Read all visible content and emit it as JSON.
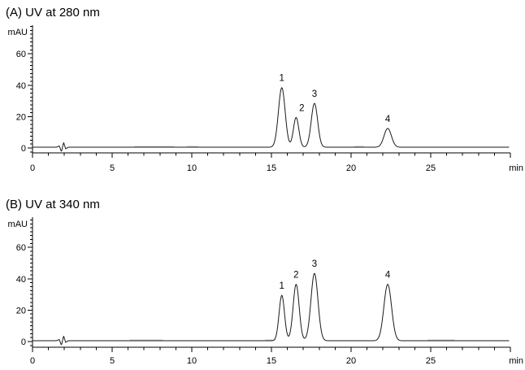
{
  "chart_data": [
    {
      "type": "line",
      "panel": "A",
      "title": "(A) UV at 280 nm",
      "ylabel": "mAU",
      "xlabel": "min",
      "xlim": [
        0,
        30
      ],
      "ylim": [
        -3,
        78
      ],
      "x_major_ticks": [
        0,
        5,
        10,
        15,
        20,
        25,
        30
      ],
      "x_major_tick_labels": [
        "0",
        "5",
        "10",
        "15",
        "20",
        "25",
        ""
      ],
      "x_minor_step": 1,
      "y_major_ticks": [
        0,
        20,
        40,
        60
      ],
      "y_minor_step": 2.5,
      "grid": false,
      "legend": "none",
      "baseline_mAU": 0.5,
      "line_color": "#1a1a1a",
      "ghost_color": "#c8c8c8",
      "ghost_segments_min": [
        [
          6.4,
          8.9
        ],
        [
          9.7,
          10.4
        ],
        [
          20.2,
          20.8
        ]
      ],
      "injection_artifact_points": [
        [
          1.5,
          0
        ],
        [
          1.68,
          0.8
        ],
        [
          1.82,
          -3.0
        ],
        [
          1.95,
          3.2
        ],
        [
          2.08,
          -1.0
        ],
        [
          2.25,
          0
        ]
      ],
      "peaks": [
        {
          "label": "1",
          "retention_min": 15.65,
          "height_mAU": 38,
          "sigma_min": 0.21,
          "label_dx": 0
        },
        {
          "label": "2",
          "retention_min": 16.55,
          "height_mAU": 19,
          "sigma_min": 0.17,
          "label_dx": 7
        },
        {
          "label": "3",
          "retention_min": 17.7,
          "height_mAU": 28,
          "sigma_min": 0.2,
          "label_dx": 0
        },
        {
          "label": "4",
          "retention_min": 22.3,
          "height_mAU": 12,
          "sigma_min": 0.23,
          "label_dx": 0
        }
      ]
    },
    {
      "type": "line",
      "panel": "B",
      "title": "(B) UV at 340 nm",
      "ylabel": "mAU",
      "xlabel": "min",
      "xlim": [
        0,
        30
      ],
      "ylim": [
        -3,
        78
      ],
      "x_major_ticks": [
        0,
        5,
        10,
        15,
        20,
        25,
        30
      ],
      "x_major_tick_labels": [
        "0",
        "5",
        "10",
        "15",
        "20",
        "25",
        ""
      ],
      "x_minor_step": 1,
      "y_major_ticks": [
        0,
        20,
        40,
        60
      ],
      "y_minor_step": 2.5,
      "grid": false,
      "legend": "none",
      "baseline_mAU": 0.5,
      "line_color": "#1a1a1a",
      "ghost_color": "#c8c8c8",
      "ghost_segments_min": [
        [
          6.1,
          8.2
        ],
        [
          14.6,
          15.3
        ],
        [
          24.8,
          26.5
        ]
      ],
      "injection_artifact_points": [
        [
          1.5,
          0
        ],
        [
          1.68,
          0.8
        ],
        [
          1.82,
          -3.0
        ],
        [
          1.95,
          3.2
        ],
        [
          2.08,
          -1.0
        ],
        [
          2.25,
          0
        ]
      ],
      "peaks": [
        {
          "label": "1",
          "retention_min": 15.65,
          "height_mAU": 29,
          "sigma_min": 0.17,
          "label_dx": 0
        },
        {
          "label": "2",
          "retention_min": 16.55,
          "height_mAU": 36,
          "sigma_min": 0.19,
          "label_dx": 0
        },
        {
          "label": "3",
          "retention_min": 17.7,
          "height_mAU": 43,
          "sigma_min": 0.22,
          "label_dx": 0
        },
        {
          "label": "4",
          "retention_min": 22.3,
          "height_mAU": 36,
          "sigma_min": 0.24,
          "label_dx": 0
        }
      ]
    }
  ]
}
